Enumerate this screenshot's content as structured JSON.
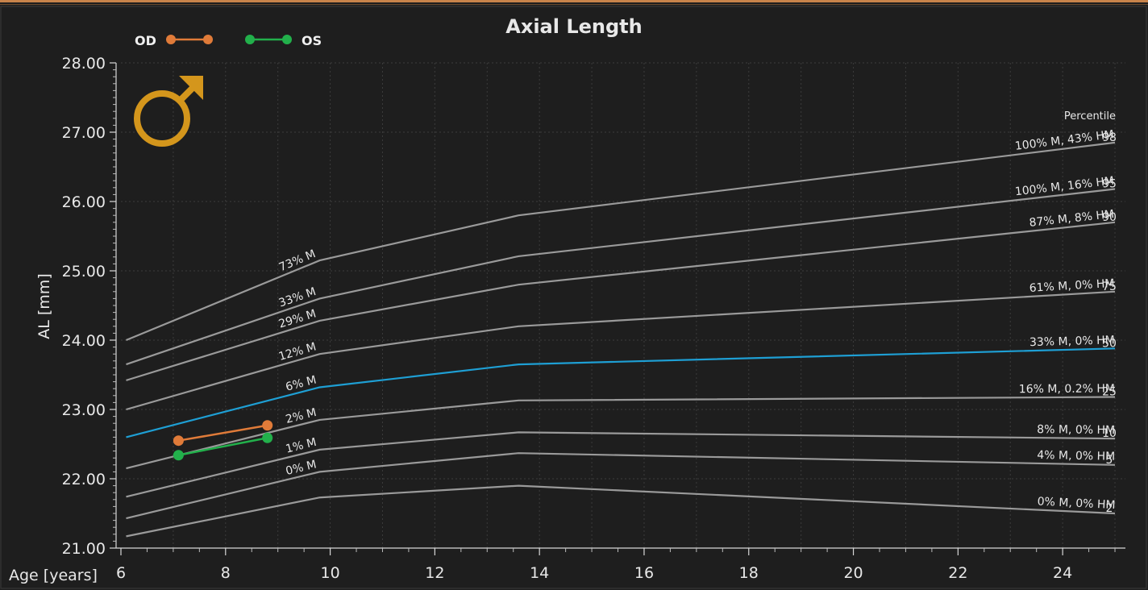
{
  "chart_data": {
    "type": "line",
    "title": "Axial Length",
    "xlabel": "Age [years]",
    "ylabel": "AL [mm]",
    "xlim": [
      6,
      25.2
    ],
    "ylim": [
      21.0,
      28.0
    ],
    "xticks": [
      6,
      8,
      10,
      12,
      14,
      16,
      18,
      20,
      22,
      24
    ],
    "xtick_labels": [
      "6",
      "8",
      "10",
      "12",
      "14",
      "16",
      "18",
      "20",
      "22",
      "24"
    ],
    "yticks": [
      21,
      22,
      23,
      24,
      25,
      26,
      27,
      28
    ],
    "ytick_labels": [
      "21.00",
      "22.00",
      "23.00",
      "24.00",
      "25.00",
      "26.00",
      "27.00",
      "28.00"
    ],
    "grid": true,
    "legend": {
      "placement": "top-left",
      "entries": [
        {
          "name": "OD",
          "color": "#e07b39"
        },
        {
          "name": "OS",
          "color": "#22b04b"
        }
      ]
    },
    "percentile_header": "Percentile",
    "gender_symbol": "♂",
    "gender_color": "#d4961c",
    "curve_color": "#9a9a9a",
    "highlight_color": "#1e9fd4",
    "percentile_curves": [
      {
        "percentile": "98",
        "x": [
          6.1,
          9.8,
          13.6,
          25
        ],
        "y": [
          24.0,
          25.15,
          25.8,
          26.85
        ],
        "mid_label": "73% M",
        "end_label": "100% M, 43% HM"
      },
      {
        "percentile": "95",
        "x": [
          6.1,
          9.8,
          13.6,
          25
        ],
        "y": [
          23.65,
          24.6,
          25.21,
          26.18
        ],
        "mid_label": "33% M",
        "end_label": "100% M, 16% HM"
      },
      {
        "percentile": "90",
        "x": [
          6.1,
          9.8,
          13.6,
          25
        ],
        "y": [
          23.42,
          24.28,
          24.8,
          25.7
        ],
        "mid_label": "29% M",
        "end_label": "87% M, 8% HM"
      },
      {
        "percentile": "75",
        "x": [
          6.1,
          9.8,
          13.6,
          25
        ],
        "y": [
          23.0,
          23.8,
          24.2,
          24.7
        ],
        "mid_label": "12% M",
        "end_label": "61% M, 0% HM"
      },
      {
        "percentile": "50",
        "x": [
          6.1,
          9.8,
          13.6,
          25
        ],
        "y": [
          22.6,
          23.32,
          23.65,
          23.88
        ],
        "mid_label": "6% M",
        "end_label": "33% M, 0% HM",
        "highlight": true
      },
      {
        "percentile": "25",
        "x": [
          6.1,
          9.8,
          13.6,
          25
        ],
        "y": [
          22.15,
          22.85,
          23.13,
          23.18
        ],
        "mid_label": "2% M",
        "end_label": "16% M, 0.2% HM"
      },
      {
        "percentile": "10",
        "x": [
          6.1,
          9.8,
          13.6,
          25
        ],
        "y": [
          21.74,
          22.42,
          22.67,
          22.58
        ],
        "mid_label": "1% M",
        "end_label": "8% M, 0% HM"
      },
      {
        "percentile": "5",
        "x": [
          6.1,
          9.8,
          13.6,
          25
        ],
        "y": [
          21.43,
          22.1,
          22.37,
          22.2
        ],
        "mid_label": "0% M",
        "end_label": "4% M, 0% HM"
      },
      {
        "percentile": "2",
        "x": [
          6.1,
          9.8,
          13.6,
          25
        ],
        "y": [
          21.17,
          21.73,
          21.9,
          21.5
        ],
        "mid_label": "",
        "end_label": "0% M, 0% HM"
      }
    ],
    "series": [
      {
        "name": "OD",
        "color": "#e07b39",
        "x": [
          7.1,
          8.8
        ],
        "y": [
          22.55,
          22.77
        ]
      },
      {
        "name": "OS",
        "color": "#22b04b",
        "x": [
          7.1,
          8.8
        ],
        "y": [
          22.34,
          22.59
        ]
      }
    ]
  }
}
